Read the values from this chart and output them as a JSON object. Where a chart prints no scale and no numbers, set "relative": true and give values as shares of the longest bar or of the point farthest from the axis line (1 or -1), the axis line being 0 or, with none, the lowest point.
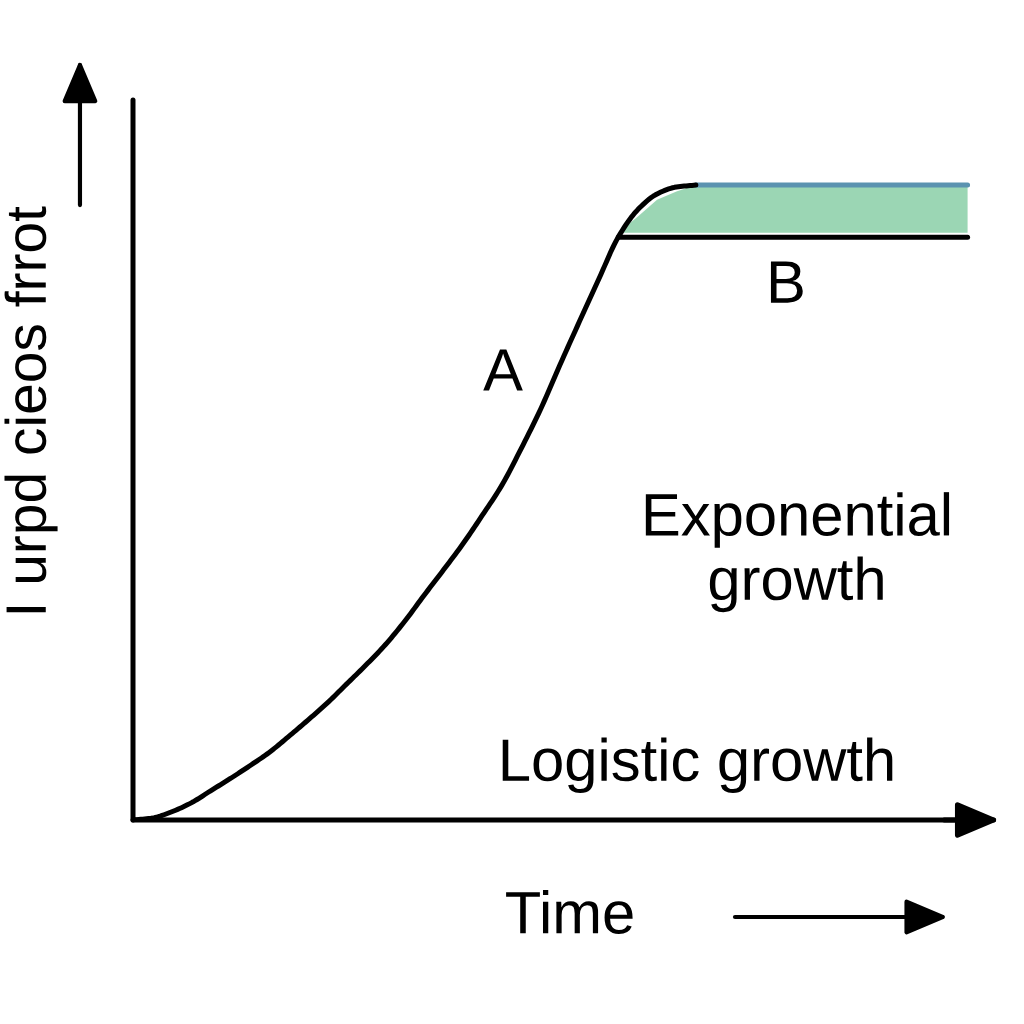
{
  "chart_data": {
    "type": "line",
    "relative": true,
    "xlabel": "Time",
    "ylabel": "I urpd cieos frrot",
    "annotations": [
      "A",
      "B",
      "Exponential growth",
      "Logistic growth"
    ],
    "categories": [
      null,
      null,
      null,
      null,
      null,
      null,
      null,
      null,
      null,
      null,
      null,
      null,
      null,
      null,
      null,
      null,
      null,
      null,
      null,
      null,
      null,
      null,
      null,
      null,
      null,
      null,
      null,
      null,
      null,
      null,
      null,
      null,
      null,
      null,
      null,
      null,
      null,
      null,
      null,
      null,
      null,
      null,
      null,
      null
    ],
    "series": [
      {
        "type": "line",
        "color": "#000000",
        "values": [
          null,
          null,
          null,
          null,
          null,
          null,
          null,
          null,
          null,
          null,
          null,
          null,
          null,
          null,
          null,
          null,
          null,
          null,
          null,
          null,
          null,
          null,
          null,
          null,
          null,
          0.918,
          0.918,
          0.918,
          0.918,
          0.918,
          0.918,
          0.918,
          0.918,
          0.918,
          0.918,
          0.918,
          0.918,
          0.918,
          0.918,
          0.918,
          0.918,
          0.918,
          0.918,
          0.918
        ]
      },
      {
        "type": "line",
        "color": "#9bd6b4",
        "values": [
          null,
          null,
          null,
          null,
          null,
          null,
          null,
          null,
          null,
          null,
          null,
          null,
          null,
          null,
          null,
          null,
          null,
          null,
          null,
          null,
          null,
          null,
          null,
          null,
          null,
          null,
          null,
          null,
          null,
          null,
          null,
          null,
          null,
          null,
          null,
          null,
          null,
          null,
          null,
          null,
          null,
          null,
          null,
          null
        ],
        "lower": [
          null,
          null,
          null,
          null,
          null,
          null,
          null,
          null,
          null,
          null,
          null,
          null,
          null,
          null,
          null,
          null,
          null,
          null,
          null,
          null,
          null,
          null,
          null,
          null,
          null,
          0.925,
          0.925,
          0.925,
          0.925,
          0.925,
          0.925,
          0.925,
          0.925,
          0.925,
          0.925,
          0.925,
          0.925,
          0.925,
          0.925,
          0.925,
          0.925,
          0.925,
          0.925,
          0.925
        ],
        "upper": [
          null,
          null,
          null,
          null,
          null,
          null,
          null,
          null,
          null,
          null,
          null,
          null,
          null,
          null,
          null,
          null,
          null,
          null,
          null,
          null,
          null,
          null,
          null,
          null,
          null,
          0.925,
          0.95,
          0.977,
          0.99,
          1.0,
          1.0,
          1.0,
          1.0,
          1.0,
          1.0,
          1.0,
          1.0,
          1.0,
          1.0,
          1.0,
          1.0,
          1.0,
          1.0,
          1.0
        ]
      },
      {
        "type": "line",
        "color": "#5b93b0",
        "values": [
          null,
          null,
          null,
          null,
          null,
          null,
          null,
          null,
          null,
          null,
          null,
          null,
          null,
          null,
          null,
          null,
          null,
          null,
          null,
          null,
          null,
          null,
          null,
          null,
          null,
          null,
          null,
          null,
          null,
          1.0,
          1.0,
          1.0,
          1.0,
          1.0,
          1.0,
          1.0,
          1.0,
          1.0,
          1.0,
          1.0,
          1.0,
          1.0,
          1.0,
          1.0
        ]
      },
      {
        "color": "#000000",
        "values": [
          0,
          0.003,
          0.013,
          0.027,
          0.046,
          0.065,
          0.085,
          0.106,
          0.131,
          0.157,
          0.184,
          0.214,
          0.244,
          0.276,
          0.313,
          0.354,
          0.394,
          0.435,
          0.48,
          0.527,
          0.585,
          0.647,
          0.717,
          0.785,
          0.852,
          0.918,
          0.961,
          0.986,
          0.997,
          1.0,
          null,
          null,
          null,
          null,
          null,
          null,
          null,
          null,
          null,
          null,
          null,
          null,
          null,
          null
        ]
      }
    ]
  }
}
